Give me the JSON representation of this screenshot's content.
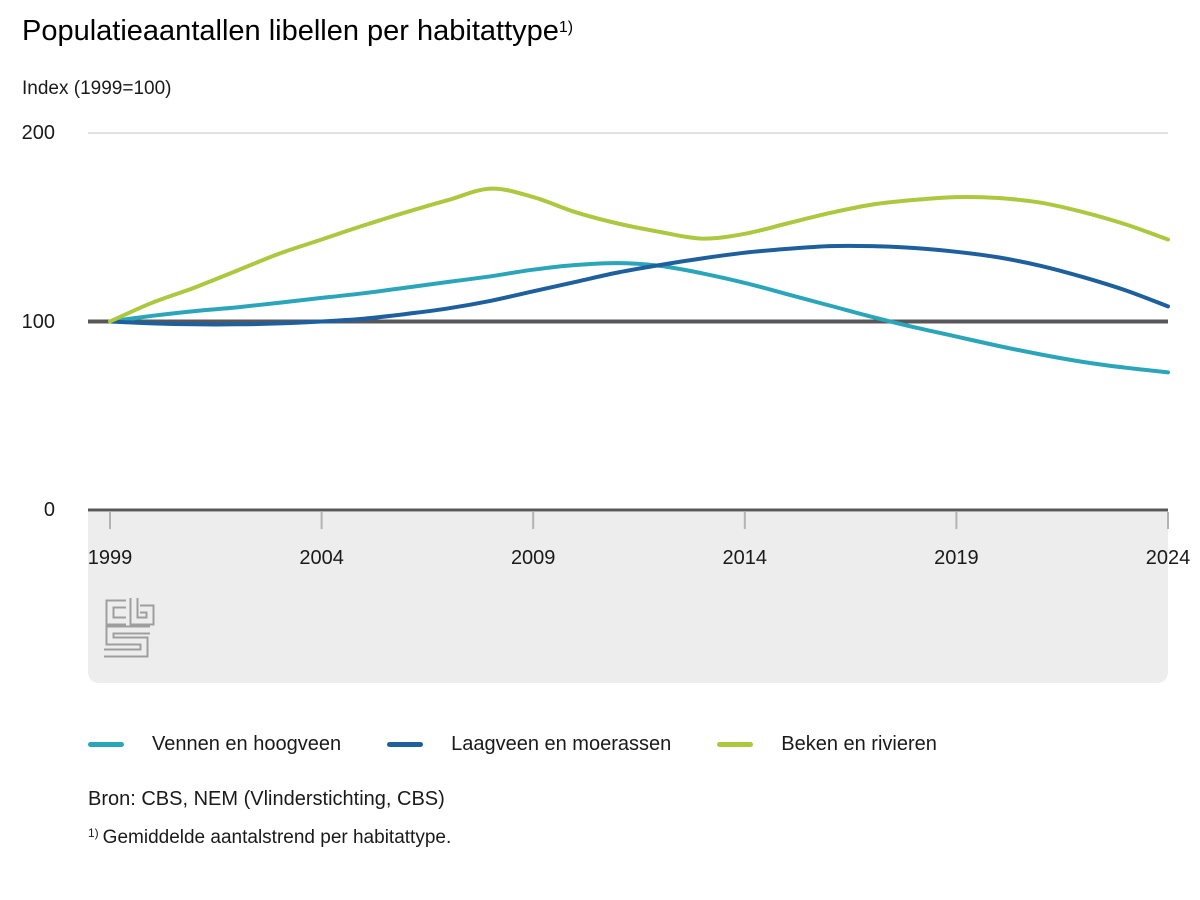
{
  "chart_data": {
    "type": "line",
    "title": "Populatieaantallen libellen per habitattype",
    "title_footnote_marker": "1)",
    "subtitle": "Index (1999=100)",
    "x": [
      1999,
      2000,
      2001,
      2002,
      2003,
      2004,
      2005,
      2006,
      2007,
      2008,
      2009,
      2010,
      2011,
      2012,
      2013,
      2014,
      2015,
      2016,
      2017,
      2018,
      2019,
      2020,
      2021,
      2022,
      2023,
      2024
    ],
    "x_ticks": [
      1999,
      2004,
      2009,
      2014,
      2019,
      2024
    ],
    "y_ticks": [
      200,
      100,
      0
    ],
    "ylim": [
      0,
      200
    ],
    "baseline": 100,
    "grid": "gridline at 200 only, bold reference line at 100",
    "legend_position": "bottom",
    "series": [
      {
        "name": "Vennen en hoogveen",
        "color": "#2aa5b9",
        "values": [
          100,
          103,
          105.5,
          107.5,
          110,
          112.5,
          115,
          118,
          121,
          124,
          127.5,
          130,
          131,
          129.5,
          125.5,
          120.5,
          114.5,
          108.5,
          102.5,
          97,
          92,
          87,
          82.5,
          78.5,
          75.5,
          73
        ]
      },
      {
        "name": "Laagveen en moerassen",
        "color": "#1e5f9e",
        "values": [
          100,
          99,
          98.5,
          98.5,
          99,
          100,
          101.5,
          104,
          107,
          111,
          116,
          121,
          126,
          130,
          133.5,
          136.5,
          138.5,
          140,
          140,
          139,
          137,
          134,
          129.5,
          123.5,
          116.5,
          108
        ]
      },
      {
        "name": "Beken en rivieren",
        "color": "#abc83e",
        "values": [
          100,
          110,
          118,
          127,
          136,
          143.5,
          151,
          158,
          164.5,
          170.5,
          166,
          158,
          152,
          147.5,
          144,
          146.5,
          152,
          157.5,
          162,
          164.5,
          166,
          165.5,
          163,
          158,
          151.5,
          143.5
        ]
      }
    ],
    "colors": {
      "baseline": "#58585a",
      "axis": "#58585a",
      "gridline": "#d9d9d9",
      "tick": "#b3b3b3",
      "band": "#ededed",
      "logo": "#9e9e9e"
    }
  },
  "footer": {
    "source": "Bron: CBS, NEM (Vlinderstichting, CBS)",
    "footnote_marker": "1)",
    "footnote_text": "Gemiddelde aantalstrend per habitattype."
  }
}
